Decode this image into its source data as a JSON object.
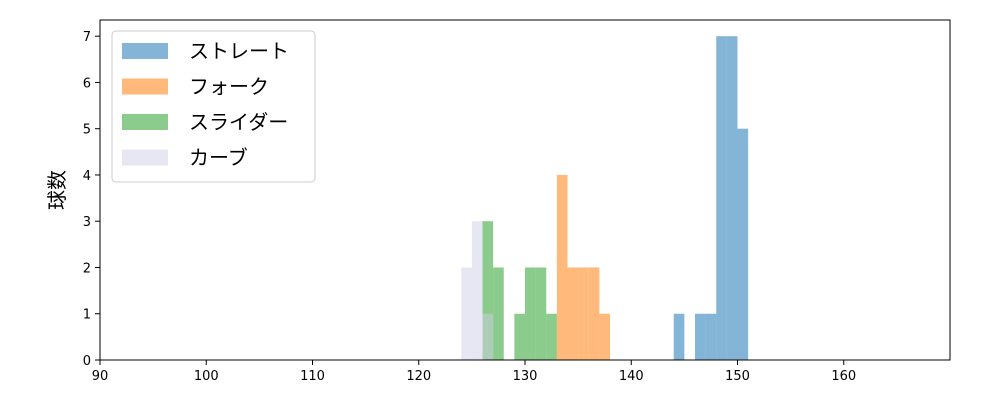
{
  "chart_data": {
    "type": "bar",
    "subtype": "histogram",
    "ylabel": "球数",
    "xlabel": "",
    "xlim": [
      90,
      170
    ],
    "ylim": [
      0,
      7.35
    ],
    "xticks": [
      90,
      100,
      110,
      120,
      130,
      140,
      150,
      160
    ],
    "yticks": [
      0,
      1,
      2,
      3,
      4,
      5,
      6,
      7
    ],
    "legend_position": "top-left",
    "bin_width": 1,
    "series": [
      {
        "name": "ストレート",
        "color": "#1f77b4",
        "bins": [
          {
            "x0": 144,
            "x1": 145,
            "count": 1
          },
          {
            "x0": 146,
            "x1": 147,
            "count": 1
          },
          {
            "x0": 147,
            "x1": 148,
            "count": 1
          },
          {
            "x0": 148,
            "x1": 149,
            "count": 7
          },
          {
            "x0": 149,
            "x1": 150,
            "count": 7
          },
          {
            "x0": 150,
            "x1": 151,
            "count": 5
          }
        ]
      },
      {
        "name": "フォーク",
        "color": "#ff7f0e",
        "bins": [
          {
            "x0": 133,
            "x1": 134,
            "count": 4
          },
          {
            "x0": 134,
            "x1": 135,
            "count": 2
          },
          {
            "x0": 135,
            "x1": 136,
            "count": 2
          },
          {
            "x0": 136,
            "x1": 137,
            "count": 2
          },
          {
            "x0": 137,
            "x1": 138,
            "count": 1
          }
        ]
      },
      {
        "name": "スライダー",
        "color": "#2ca02c",
        "bins": [
          {
            "x0": 126,
            "x1": 127,
            "count": 3
          },
          {
            "x0": 127,
            "x1": 128,
            "count": 2
          },
          {
            "x0": 129,
            "x1": 130,
            "count": 1
          },
          {
            "x0": 130,
            "x1": 131,
            "count": 2
          },
          {
            "x0": 131,
            "x1": 132,
            "count": 2
          },
          {
            "x0": 132,
            "x1": 133,
            "count": 1
          }
        ]
      },
      {
        "name": "カーブ",
        "color": "#d0d0e8",
        "bins": [
          {
            "x0": 124,
            "x1": 125,
            "count": 2
          },
          {
            "x0": 125,
            "x1": 126,
            "count": 3
          },
          {
            "x0": 126,
            "x1": 127,
            "count": 1
          }
        ]
      }
    ]
  }
}
